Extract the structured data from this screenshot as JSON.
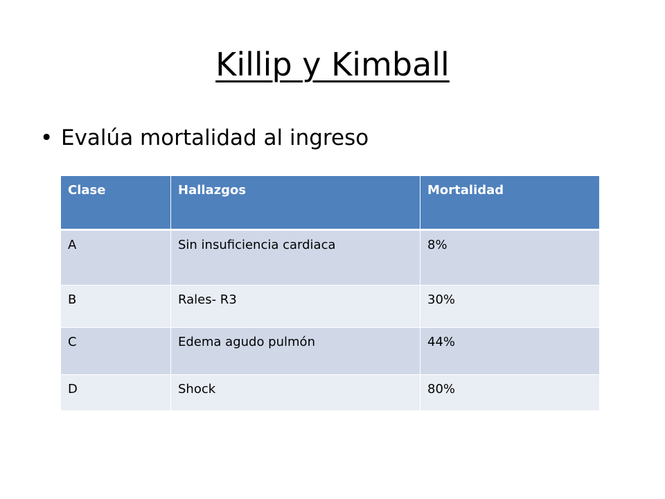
{
  "slide": {
    "title": "Killip y Kimball",
    "bullet": "Evalúa mortalidad al ingreso"
  },
  "table": {
    "headers": [
      "Clase",
      "Hallazgos",
      "Mortalidad"
    ],
    "rows": [
      [
        "A",
        "Sin insuficiencia cardiaca",
        "8%"
      ],
      [
        "B",
        "Rales- R3",
        "30%"
      ],
      [
        "C",
        "Edema agudo pulmón",
        "44%"
      ],
      [
        "D",
        "Shock",
        "80%"
      ]
    ]
  },
  "colors": {
    "header": "#4f81bd",
    "row_dark": "#d0d8e8",
    "row_light": "#e9edf4"
  }
}
